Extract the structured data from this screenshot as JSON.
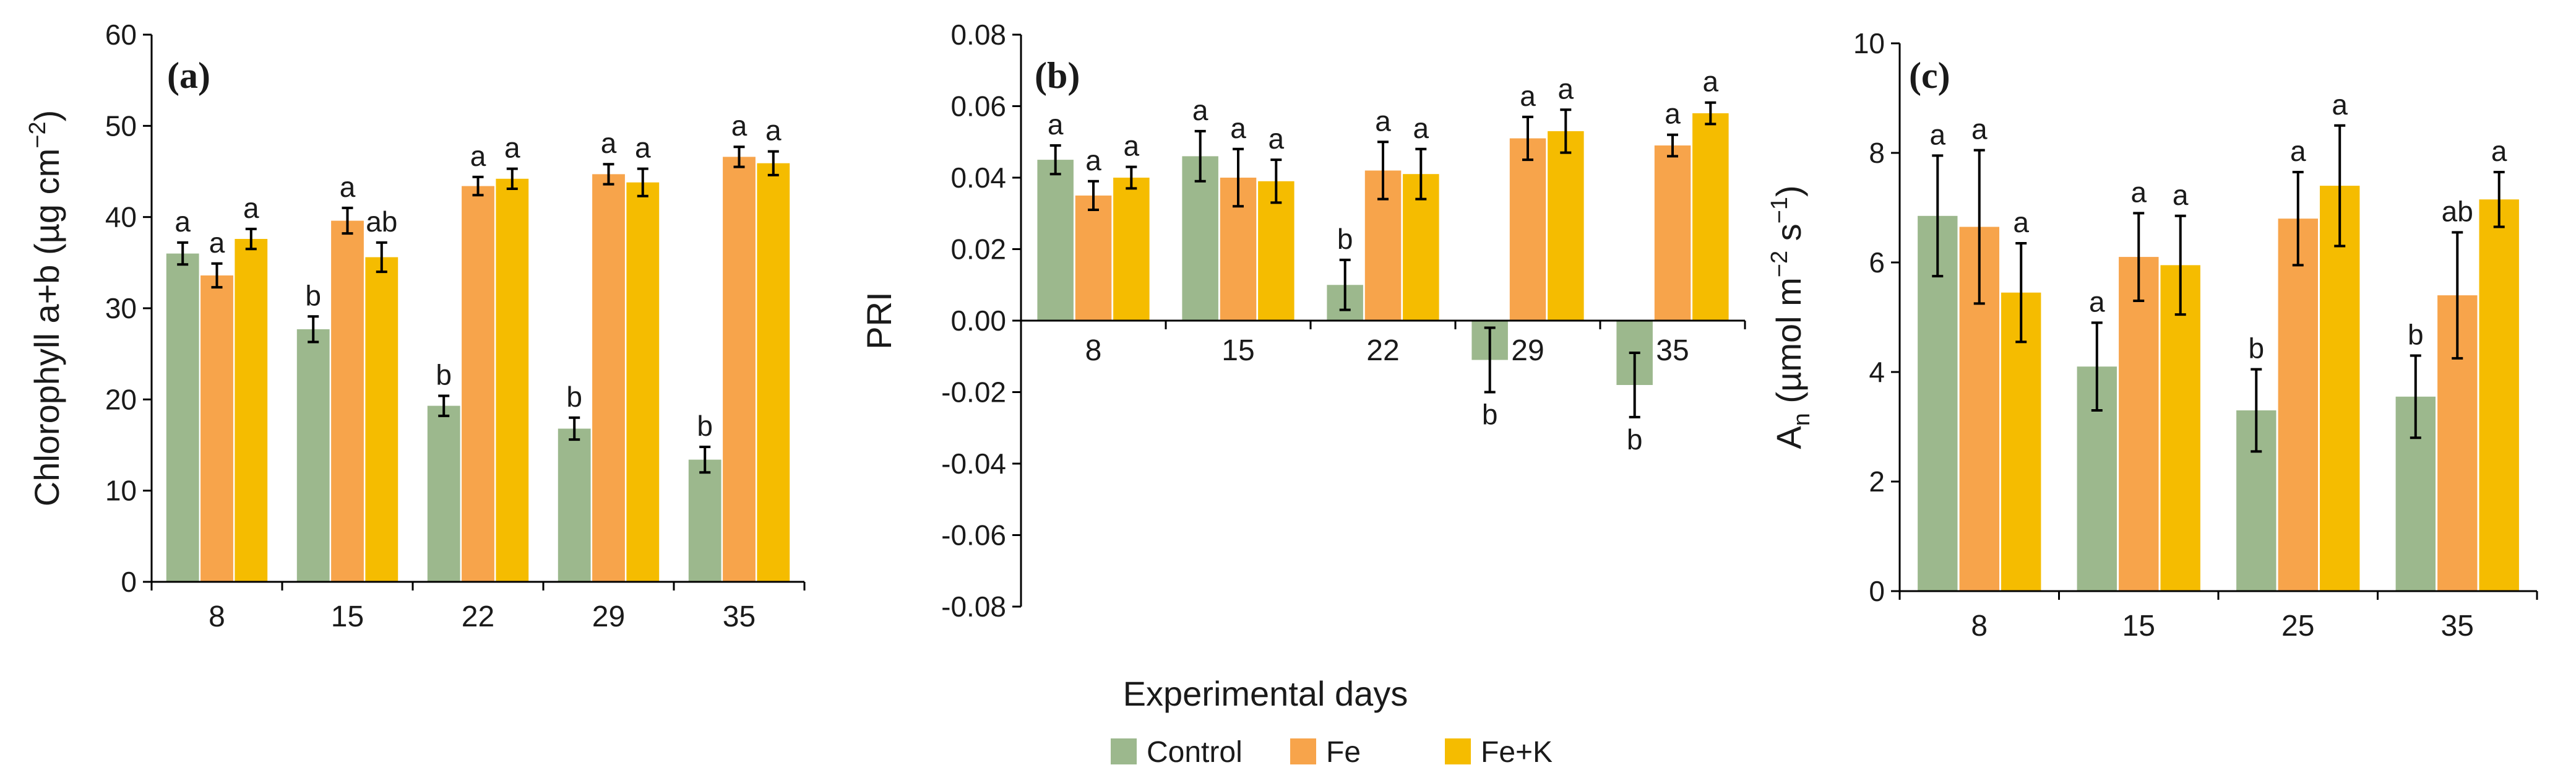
{
  "figure": {
    "xlabel": "Experimental days",
    "legend": [
      {
        "name": "Control",
        "color": "#9cb88d"
      },
      {
        "name": "Fe",
        "color": "#f7a44b"
      },
      {
        "name": "Fe+K",
        "color": "#f5bc00"
      }
    ]
  },
  "chart_data": [
    {
      "type": "bar",
      "panel_label": "(a)",
      "ylabel": "Chlorophyll a+b (µg cm⁻²)",
      "ylabel_parts": {
        "main": "Chlorophyll a+b (µg cm",
        "sup": "−2",
        "end": ")"
      },
      "ylim": [
        0,
        60
      ],
      "yticks": [
        "0",
        "10",
        "20",
        "30",
        "40",
        "50",
        "60"
      ],
      "ytick_values": [
        0,
        10,
        20,
        30,
        40,
        50,
        60
      ],
      "categories": [
        "8",
        "15",
        "22",
        "29",
        "35"
      ],
      "series": [
        {
          "name": "Control",
          "values": [
            36.0,
            27.7,
            19.3,
            16.8,
            13.4
          ],
          "errors": [
            1.2,
            1.4,
            1.1,
            1.2,
            1.4
          ],
          "labels": [
            "a",
            "b",
            "b",
            "b",
            "b"
          ]
        },
        {
          "name": "Fe",
          "values": [
            33.6,
            39.6,
            43.4,
            44.7,
            46.6
          ],
          "errors": [
            1.3,
            1.4,
            1.0,
            1.1,
            1.1
          ],
          "labels": [
            "a",
            "a",
            "a",
            "a",
            "a"
          ]
        },
        {
          "name": "Fe+K",
          "values": [
            37.6,
            35.6,
            44.2,
            43.8,
            45.9
          ],
          "errors": [
            1.1,
            1.6,
            1.1,
            1.5,
            1.3
          ],
          "labels": [
            "a",
            "ab",
            "a",
            "a",
            "a"
          ]
        }
      ]
    },
    {
      "type": "bar",
      "panel_label": "(b)",
      "ylabel": "PRI",
      "ylabel_parts": {
        "main": "PRI",
        "sup": "",
        "end": ""
      },
      "ylim": [
        -0.08,
        0.08
      ],
      "yticks": [
        "0.08",
        "0.06",
        "0.04",
        "0.02",
        "0.00",
        "-0.02",
        "-0.04",
        "-0.06",
        "-0.08"
      ],
      "ytick_values": [
        0.08,
        0.06,
        0.04,
        0.02,
        0.0,
        -0.02,
        -0.04,
        -0.06,
        -0.08
      ],
      "categories": [
        "8",
        "15",
        "22",
        "29",
        "35"
      ],
      "series": [
        {
          "name": "Control",
          "values": [
            0.045,
            0.046,
            0.01,
            -0.011,
            -0.018
          ],
          "errors": [
            0.004,
            0.007,
            0.007,
            0.009,
            0.009
          ],
          "labels": [
            "a",
            "a",
            "b",
            "b",
            "b"
          ]
        },
        {
          "name": "Fe",
          "values": [
            0.035,
            0.04,
            0.042,
            0.051,
            0.049
          ],
          "errors": [
            0.004,
            0.008,
            0.008,
            0.006,
            0.003
          ],
          "labels": [
            "a",
            "a",
            "a",
            "a",
            "a"
          ]
        },
        {
          "name": "Fe+K",
          "values": [
            0.04,
            0.039,
            0.041,
            0.053,
            0.058
          ],
          "errors": [
            0.003,
            0.006,
            0.007,
            0.006,
            0.003
          ],
          "labels": [
            "a",
            "a",
            "a",
            "a",
            "a"
          ]
        }
      ]
    },
    {
      "type": "bar",
      "panel_label": "(c)",
      "ylabel": "An (µmol m⁻² s⁻¹)",
      "ylabel_parts": {
        "main": "A",
        "sub": "n",
        "rest": " (µmol m",
        "sup": "−2",
        "rest2": " s",
        "sup2": "−1",
        "end": ")"
      },
      "ylim": [
        0,
        10
      ],
      "yticks": [
        "0",
        "2",
        "4",
        "6",
        "8",
        "10"
      ],
      "ytick_values": [
        0,
        2,
        4,
        6,
        8,
        10
      ],
      "categories": [
        "8",
        "15",
        "25",
        "35"
      ],
      "series": [
        {
          "name": "Control",
          "values": [
            6.85,
            4.1,
            3.3,
            3.55
          ],
          "errors": [
            1.1,
            0.8,
            0.75,
            0.75
          ],
          "labels": [
            "a",
            "a",
            "b",
            "b"
          ]
        },
        {
          "name": "Fe",
          "values": [
            6.65,
            6.1,
            6.8,
            5.4
          ],
          "errors": [
            1.4,
            0.8,
            0.85,
            1.15
          ],
          "labels": [
            "a",
            "a",
            "a",
            "ab"
          ]
        },
        {
          "name": "Fe+K",
          "values": [
            5.45,
            5.95,
            7.4,
            7.15
          ],
          "errors": [
            0.9,
            0.9,
            1.1,
            0.5
          ],
          "labels": [
            "a",
            "a",
            "a",
            "a"
          ]
        }
      ]
    }
  ]
}
